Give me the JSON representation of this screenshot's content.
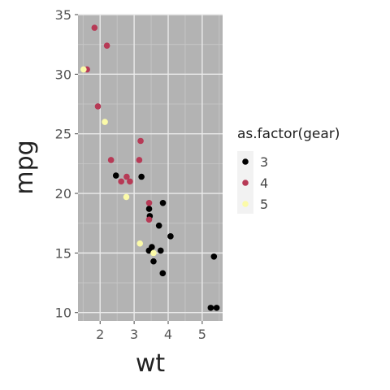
{
  "chart_data": {
    "type": "scatter",
    "xlabel": "wt",
    "ylabel": "mpg",
    "xlim": [
      1.35,
      5.6
    ],
    "ylim": [
      9.3,
      35.0
    ],
    "x_ticks": [
      2,
      3,
      4,
      5
    ],
    "x_tick_labels": [
      "2",
      "3",
      "4",
      "5"
    ],
    "y_ticks": [
      10,
      15,
      20,
      25,
      30,
      35
    ],
    "y_tick_labels": [
      "10",
      "15",
      "20",
      "25",
      "30",
      "35"
    ],
    "grid": true,
    "panel_background": "#b3b3b3",
    "legend": {
      "title": "as.factor(gear)",
      "position": "right",
      "entries": [
        {
          "label": "3",
          "color": "#000000"
        },
        {
          "label": "4",
          "color": "#b73a56"
        },
        {
          "label": "5",
          "color": "#fbfaa8"
        }
      ]
    },
    "series": [
      {
        "name": "3",
        "color": "#000000",
        "points": [
          [
            3.215,
            21.4
          ],
          [
            3.44,
            18.7
          ],
          [
            3.46,
            18.1
          ],
          [
            3.57,
            14.3
          ],
          [
            4.07,
            16.4
          ],
          [
            3.73,
            17.3
          ],
          [
            3.78,
            15.2
          ],
          [
            5.25,
            10.4
          ],
          [
            5.424,
            10.4
          ],
          [
            5.345,
            14.7
          ],
          [
            2.465,
            21.5
          ],
          [
            3.52,
            15.5
          ],
          [
            3.435,
            15.2
          ],
          [
            3.84,
            13.3
          ],
          [
            3.845,
            19.2
          ]
        ]
      },
      {
        "name": "4",
        "color": "#b73a56",
        "points": [
          [
            2.62,
            21.0
          ],
          [
            2.875,
            21.0
          ],
          [
            2.32,
            22.8
          ],
          [
            3.19,
            24.4
          ],
          [
            3.15,
            22.8
          ],
          [
            3.44,
            19.2
          ],
          [
            3.44,
            17.8
          ],
          [
            2.2,
            32.4
          ],
          [
            1.615,
            30.4
          ],
          [
            1.835,
            33.9
          ],
          [
            1.935,
            27.3
          ],
          [
            2.78,
            21.4
          ]
        ]
      },
      {
        "name": "5",
        "color": "#fbfaa8",
        "points": [
          [
            2.14,
            26.0
          ],
          [
            1.513,
            30.4
          ],
          [
            3.17,
            15.8
          ],
          [
            2.77,
            19.7
          ],
          [
            3.57,
            15.0
          ]
        ]
      }
    ]
  }
}
